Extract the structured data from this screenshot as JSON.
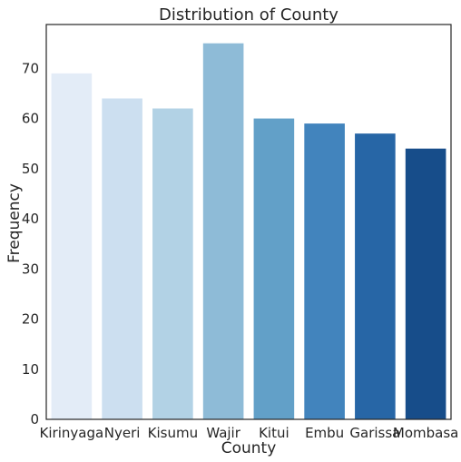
{
  "chart_data": {
    "type": "bar",
    "title": "Distribution of County",
    "xlabel": "County",
    "ylabel": "Frequency",
    "categories": [
      "Kirinyaga",
      "Nyeri",
      "Kisumu",
      "Wajir",
      "Kitui",
      "Embu",
      "Garissa",
      "Mombasa"
    ],
    "values": [
      69,
      64,
      62,
      75,
      60,
      59,
      57,
      54
    ],
    "colors": [
      "#e3ecf7",
      "#ccdff0",
      "#b2d2e5",
      "#8ebbd7",
      "#62a0c8",
      "#4284bd",
      "#2766a6",
      "#174d8a"
    ],
    "yticks": [
      0,
      10,
      20,
      30,
      40,
      50,
      60,
      70
    ],
    "ylim": [
      0,
      78.75
    ],
    "grid": false
  }
}
